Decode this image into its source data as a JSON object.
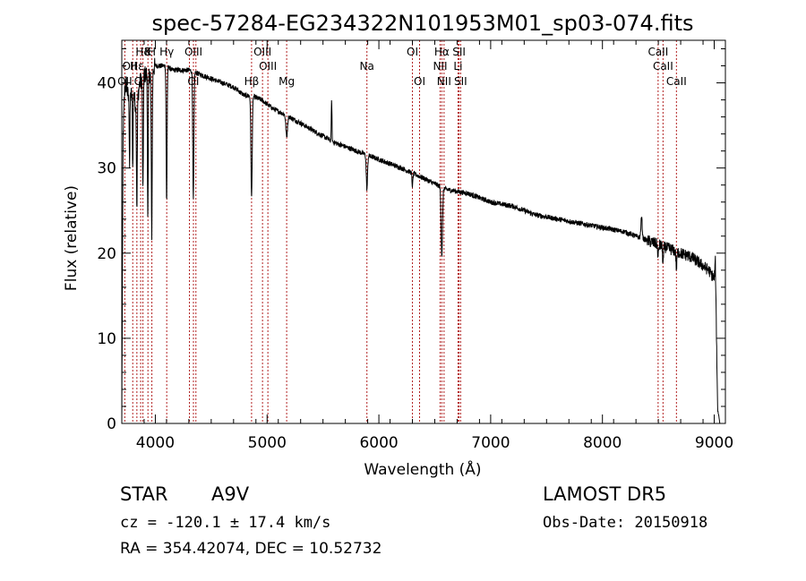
{
  "chart_data": {
    "type": "line",
    "title": "spec-57284-EG234322N101953M01_sp03-074.fits",
    "xlabel": "Wavelength (Å)",
    "ylabel": "Flux (relative)",
    "xlim": [
      3700,
      9100
    ],
    "ylim": [
      0,
      45
    ],
    "x_ticks": [
      4000,
      5000,
      6000,
      7000,
      8000,
      9000
    ],
    "y_ticks": [
      0,
      10,
      20,
      30,
      40
    ],
    "grid": false,
    "series_color": "#000000",
    "line_marker_color": "#b22222",
    "continuum": [
      [
        3700,
        0
      ],
      [
        3705,
        14
      ],
      [
        3712,
        34
      ],
      [
        3725,
        39
      ],
      [
        3740,
        40
      ],
      [
        3760,
        38
      ],
      [
        3800,
        39
      ],
      [
        3830,
        37
      ],
      [
        3860,
        40
      ],
      [
        3900,
        41
      ],
      [
        3950,
        41
      ],
      [
        4000,
        42
      ],
      [
        4050,
        42
      ],
      [
        4100,
        42
      ],
      [
        4150,
        41.5
      ],
      [
        4200,
        41.5
      ],
      [
        4300,
        41.5
      ],
      [
        4400,
        41
      ],
      [
        4500,
        40.5
      ],
      [
        4600,
        40
      ],
      [
        4700,
        39.5
      ],
      [
        4800,
        38.5
      ],
      [
        4860,
        38.5
      ],
      [
        4950,
        38
      ],
      [
        5050,
        37
      ],
      [
        5200,
        36
      ],
      [
        5400,
        34.5
      ],
      [
        5600,
        33
      ],
      [
        5800,
        32
      ],
      [
        6000,
        31
      ],
      [
        6200,
        30
      ],
      [
        6400,
        28.8
      ],
      [
        6600,
        27.5
      ],
      [
        6800,
        27
      ],
      [
        7000,
        26
      ],
      [
        7200,
        25.5
      ],
      [
        7400,
        24.5
      ],
      [
        7600,
        24
      ],
      [
        7800,
        23.5
      ],
      [
        8000,
        23
      ],
      [
        8200,
        22.5
      ],
      [
        8400,
        21.5
      ],
      [
        8600,
        20.5
      ],
      [
        8800,
        19.5
      ],
      [
        8950,
        18
      ],
      [
        9000,
        17
      ],
      [
        9010,
        19
      ],
      [
        9030,
        2
      ],
      [
        9050,
        0
      ]
    ],
    "absorption_features": [
      {
        "wavelength": 3770,
        "depth": 8,
        "width": 4
      },
      {
        "wavelength": 3798,
        "depth": 9,
        "width": 4
      },
      {
        "wavelength": 3835,
        "depth": 12,
        "width": 5
      },
      {
        "wavelength": 3889,
        "depth": 14,
        "width": 5
      },
      {
        "wavelength": 3933,
        "depth": 17,
        "width": 5
      },
      {
        "wavelength": 3968,
        "depth": 19,
        "width": 6
      },
      {
        "wavelength": 4101,
        "depth": 16,
        "width": 6
      },
      {
        "wavelength": 4340,
        "depth": 15,
        "width": 7
      },
      {
        "wavelength": 4861,
        "depth": 12,
        "width": 8
      },
      {
        "wavelength": 5175,
        "depth": 2.5,
        "width": 10
      },
      {
        "wavelength": 5893,
        "depth": 4,
        "width": 8
      },
      {
        "wavelength": 6300,
        "depth": 1.5,
        "width": 6
      },
      {
        "wavelength": 6563,
        "depth": 8,
        "width": 9
      },
      {
        "wavelength": 8498,
        "depth": 1.5,
        "width": 6
      },
      {
        "wavelength": 8542,
        "depth": 2,
        "width": 6
      },
      {
        "wavelength": 8662,
        "depth": 2,
        "width": 6
      }
    ],
    "emission_features": [
      {
        "wavelength": 5577,
        "height": 5,
        "width": 4
      },
      {
        "wavelength": 8350,
        "height": 2.5,
        "width": 8
      }
    ],
    "line_markers": [
      {
        "wavelength": 3727,
        "label": "OII",
        "row": 3
      },
      {
        "wavelength": 3798,
        "label": "",
        "row": 0
      },
      {
        "wavelength": 3835,
        "label": "",
        "row": 0
      },
      {
        "wavelength": 3869,
        "label": "",
        "row": 0
      },
      {
        "wavelength": 3889,
        "label": "Hδ",
        "row": 1
      },
      {
        "wavelength": 3934,
        "label": "K",
        "row": 1
      },
      {
        "wavelength": 3969,
        "label": "H",
        "row": 1
      },
      {
        "wavelength": 4102,
        "label": "Hγ",
        "row": 1
      },
      {
        "wavelength": 4305,
        "label": "",
        "row": 0
      },
      {
        "wavelength": 4341,
        "label": "OIII",
        "row": 1
      },
      {
        "wavelength": 4363,
        "label": "",
        "row": 0
      },
      {
        "wavelength": 4861,
        "label": "Hβ",
        "row": 3
      },
      {
        "wavelength": 4959,
        "label": "OIII",
        "row": 1
      },
      {
        "wavelength": 5007,
        "label": "OIII",
        "row": 2
      },
      {
        "wavelength": 5175,
        "label": "Mg",
        "row": 3
      },
      {
        "wavelength": 5893,
        "label": "Na",
        "row": 2
      },
      {
        "wavelength": 6300,
        "label": "OI",
        "row": 1
      },
      {
        "wavelength": 6364,
        "label": "OI",
        "row": 3
      },
      {
        "wavelength": 6548,
        "label": "NII",
        "row": 2
      },
      {
        "wavelength": 6563,
        "label": "Hα",
        "row": 1
      },
      {
        "wavelength": 6583,
        "label": "NII",
        "row": 3
      },
      {
        "wavelength": 6708,
        "label": "Li",
        "row": 2
      },
      {
        "wavelength": 6717,
        "label": "SII",
        "row": 1
      },
      {
        "wavelength": 6731,
        "label": "SII",
        "row": 3
      },
      {
        "wavelength": 8498,
        "label": "CaII",
        "row": 1
      },
      {
        "wavelength": 8542,
        "label": "CaII",
        "row": 2
      },
      {
        "wavelength": 8662,
        "label": "CaII",
        "row": 3
      }
    ],
    "extra_labels": [
      {
        "wavelength": 3770,
        "label": "OII",
        "row": 2
      },
      {
        "wavelength": 3835,
        "label": "Hε",
        "row": 2
      },
      {
        "wavelength": 3875,
        "label": "OII",
        "row": 3
      },
      {
        "wavelength": 4340,
        "label": "OI",
        "row": 3
      }
    ]
  },
  "info": {
    "object_class": "STAR",
    "subclass": "A9V",
    "survey": "LAMOST DR5",
    "redshift": "cz = -120.1 ± 17.4 km/s",
    "obs_date": "Obs-Date: 20150918",
    "coords": "RA = 354.42074, DEC =  10.52732"
  }
}
